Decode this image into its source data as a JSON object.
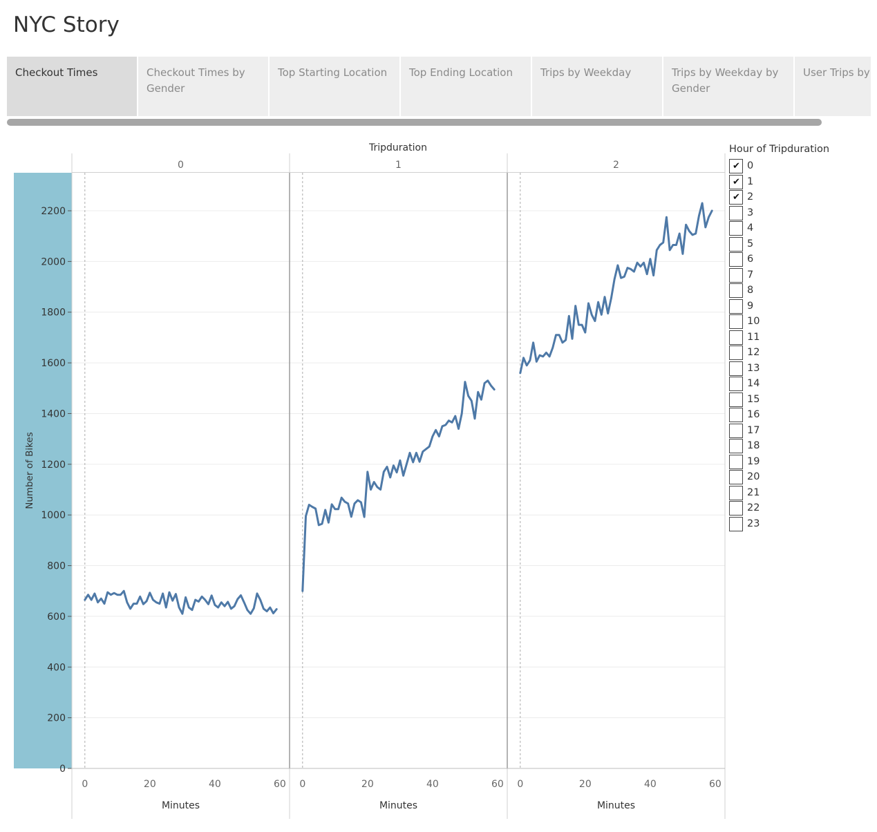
{
  "story": {
    "title": "NYC Story"
  },
  "tabs": [
    {
      "label": "Checkout Times",
      "active": true
    },
    {
      "label": "Checkout Times by Gender",
      "active": false
    },
    {
      "label": "Top Starting Location",
      "active": false
    },
    {
      "label": "Top Ending Location",
      "active": false
    },
    {
      "label": "Trips by Weekday",
      "active": false
    },
    {
      "label": "Trips by Weekday by Gender",
      "active": false
    },
    {
      "label": "User Trips by Gender",
      "active": false
    }
  ],
  "colors": {
    "line": "#4e79a7",
    "axis_band": "#8fc4d4",
    "grid": "#ececec",
    "tab_bg": "#eeeeee",
    "tab_active_bg": "#dcdcdc"
  },
  "legend": {
    "title": "Hour of Tripduration",
    "items": [
      {
        "label": "0",
        "checked": true
      },
      {
        "label": "1",
        "checked": true
      },
      {
        "label": "2",
        "checked": true
      },
      {
        "label": "3",
        "checked": false
      },
      {
        "label": "4",
        "checked": false
      },
      {
        "label": "5",
        "checked": false
      },
      {
        "label": "6",
        "checked": false
      },
      {
        "label": "7",
        "checked": false
      },
      {
        "label": "8",
        "checked": false
      },
      {
        "label": "9",
        "checked": false
      },
      {
        "label": "10",
        "checked": false
      },
      {
        "label": "11",
        "checked": false
      },
      {
        "label": "12",
        "checked": false
      },
      {
        "label": "13",
        "checked": false
      },
      {
        "label": "14",
        "checked": false
      },
      {
        "label": "15",
        "checked": false
      },
      {
        "label": "16",
        "checked": false
      },
      {
        "label": "17",
        "checked": false
      },
      {
        "label": "18",
        "checked": false
      },
      {
        "label": "19",
        "checked": false
      },
      {
        "label": "20",
        "checked": false
      },
      {
        "label": "21",
        "checked": false
      },
      {
        "label": "22",
        "checked": false
      },
      {
        "label": "23",
        "checked": false
      }
    ],
    "check_glyph": "✔"
  },
  "chart_data": {
    "type": "line",
    "title": "",
    "facet_label": "Tripduration",
    "ylabel": "Number of Bikes",
    "xlabel": "Minutes",
    "ylim": [
      0,
      2350
    ],
    "xlim": [
      -4,
      63
    ],
    "y_ticks": [
      0,
      200,
      400,
      600,
      800,
      1000,
      1200,
      1400,
      1600,
      1800,
      2000,
      2200
    ],
    "x_ticks": [
      0,
      20,
      40,
      60
    ],
    "grid": true,
    "x": [
      0,
      1,
      2,
      3,
      4,
      5,
      6,
      7,
      8,
      9,
      10,
      11,
      12,
      13,
      14,
      15,
      16,
      17,
      18,
      19,
      20,
      21,
      22,
      23,
      24,
      25,
      26,
      27,
      28,
      29,
      30,
      31,
      32,
      33,
      34,
      35,
      36,
      37,
      38,
      39,
      40,
      41,
      42,
      43,
      44,
      45,
      46,
      47,
      48,
      49,
      50,
      51,
      52,
      53,
      54,
      55,
      56,
      57,
      58,
      59
    ],
    "series": [
      {
        "facet": "0",
        "values": [
          665,
          685,
          665,
          690,
          655,
          670,
          650,
          695,
          685,
          692,
          685,
          685,
          700,
          655,
          630,
          650,
          650,
          678,
          648,
          660,
          693,
          665,
          655,
          650,
          690,
          635,
          695,
          662,
          688,
          635,
          610,
          675,
          635,
          625,
          665,
          658,
          678,
          665,
          648,
          682,
          645,
          635,
          655,
          640,
          657,
          630,
          640,
          668,
          683,
          655,
          625,
          610,
          632,
          690,
          665,
          630,
          620,
          635,
          612,
          628
        ]
      },
      {
        "facet": "1",
        "values": [
          700,
          995,
          1040,
          1032,
          1025,
          960,
          965,
          1020,
          970,
          1042,
          1023,
          1023,
          1068,
          1052,
          1045,
          993,
          1045,
          1058,
          1050,
          992,
          1170,
          1100,
          1130,
          1110,
          1100,
          1170,
          1190,
          1148,
          1195,
          1168,
          1215,
          1155,
          1200,
          1245,
          1208,
          1245,
          1210,
          1250,
          1260,
          1270,
          1310,
          1335,
          1310,
          1350,
          1355,
          1372,
          1365,
          1390,
          1340,
          1400,
          1525,
          1470,
          1450,
          1380,
          1485,
          1455,
          1520,
          1530,
          1510,
          1495
        ]
      },
      {
        "facet": "2",
        "values": [
          1560,
          1620,
          1590,
          1610,
          1680,
          1605,
          1630,
          1625,
          1640,
          1625,
          1660,
          1710,
          1710,
          1680,
          1690,
          1785,
          1695,
          1825,
          1750,
          1750,
          1720,
          1835,
          1790,
          1765,
          1840,
          1790,
          1860,
          1795,
          1855,
          1930,
          1985,
          1935,
          1940,
          1975,
          1970,
          1960,
          1995,
          1980,
          1995,
          1950,
          2010,
          1945,
          2045,
          2065,
          2075,
          2175,
          2045,
          2065,
          2065,
          2110,
          2030,
          2145,
          2120,
          2105,
          2110,
          2180,
          2230,
          2135,
          2175,
          2200
        ]
      }
    ]
  }
}
